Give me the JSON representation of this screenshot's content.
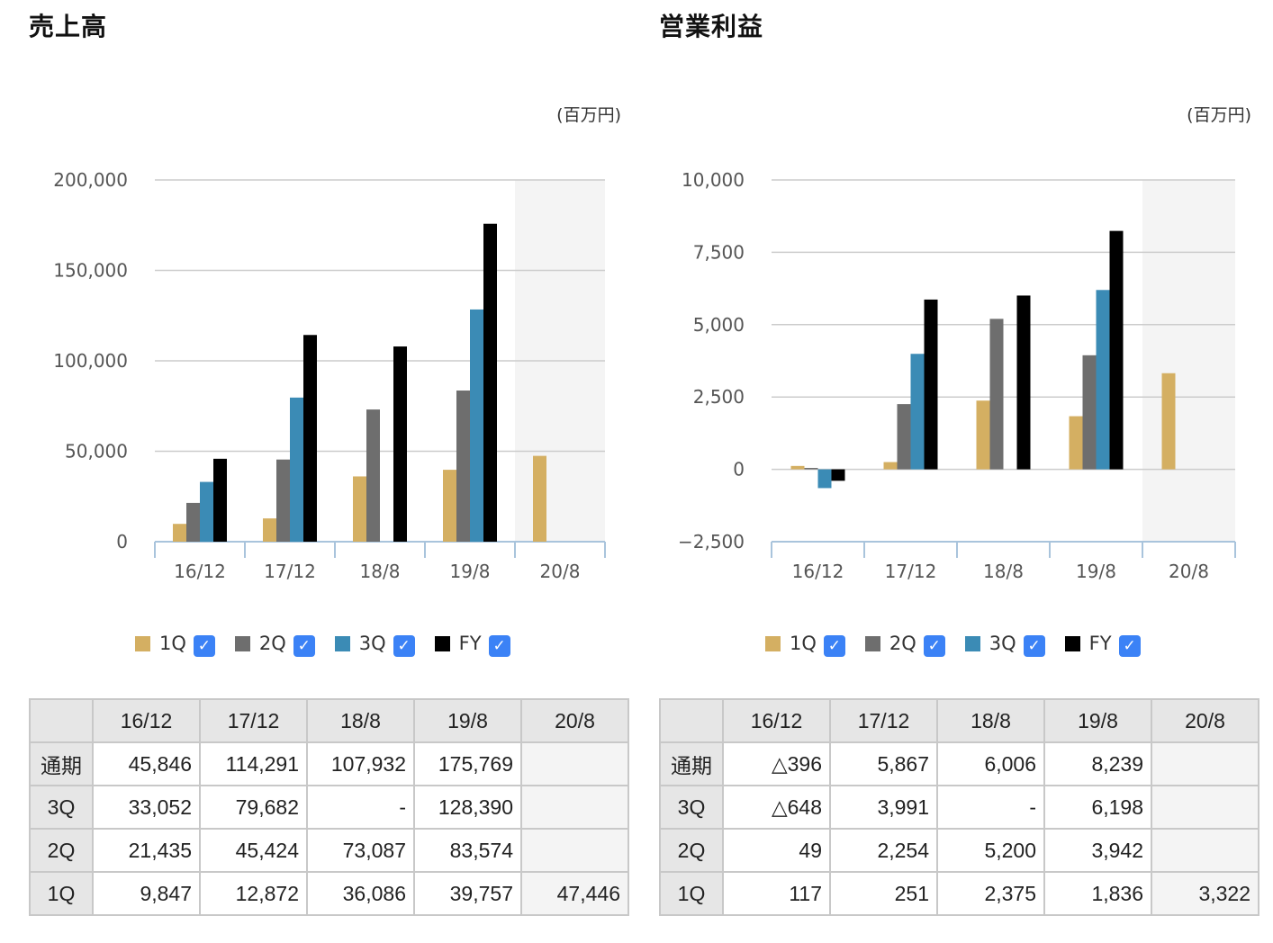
{
  "colors": {
    "q1": "#d4af62",
    "q2": "#6e6e6e",
    "q3": "#3b8bb5",
    "fy": "#000000",
    "check": "#3b82f6",
    "forecast_bg": "#f4f4f4"
  },
  "legend_items": [
    {
      "key": "q1",
      "label": "1Q",
      "checked": true
    },
    {
      "key": "q2",
      "label": "2Q",
      "checked": true
    },
    {
      "key": "q3",
      "label": "3Q",
      "checked": true
    },
    {
      "key": "fy",
      "label": "FY",
      "checked": true
    }
  ],
  "check_icon": "check-icon",
  "panels": [
    {
      "title": "売上高",
      "unit": "(百万円)",
      "table": {
        "headers": [
          "",
          "16/12",
          "17/12",
          "18/8",
          "19/8",
          "20/8"
        ],
        "rows": [
          {
            "label": "通期",
            "cells": [
              "45,846",
              "114,291",
              "107,932",
              "175,769",
              ""
            ]
          },
          {
            "label": "3Q",
            "cells": [
              "33,052",
              "79,682",
              "-",
              "128,390",
              ""
            ]
          },
          {
            "label": "2Q",
            "cells": [
              "21,435",
              "45,424",
              "73,087",
              "83,574",
              ""
            ]
          },
          {
            "label": "1Q",
            "cells": [
              "9,847",
              "12,872",
              "36,086",
              "39,757",
              "47,446"
            ]
          }
        ]
      }
    },
    {
      "title": "営業利益",
      "unit": "(百万円)",
      "table": {
        "headers": [
          "",
          "16/12",
          "17/12",
          "18/8",
          "19/8",
          "20/8"
        ],
        "rows": [
          {
            "label": "通期",
            "cells": [
              "△396",
              "5,867",
              "6,006",
              "8,239",
              ""
            ]
          },
          {
            "label": "3Q",
            "cells": [
              "△648",
              "3,991",
              "-",
              "6,198",
              ""
            ]
          },
          {
            "label": "2Q",
            "cells": [
              "49",
              "2,254",
              "5,200",
              "3,942",
              ""
            ]
          },
          {
            "label": "1Q",
            "cells": [
              "117",
              "251",
              "2,375",
              "1,836",
              "3,322"
            ]
          }
        ]
      }
    }
  ],
  "chart_data": [
    {
      "type": "bar",
      "title": "売上高",
      "unit": "(百万円)",
      "categories": [
        "16/12",
        "17/12",
        "18/8",
        "19/8",
        "20/8"
      ],
      "ylim": [
        0,
        200000
      ],
      "yticks": [
        0,
        50000,
        100000,
        150000,
        200000
      ],
      "ytick_labels": [
        "0",
        "50,000",
        "100,000",
        "150,000",
        "200,000"
      ],
      "forecast_category": "20/8",
      "grid": true,
      "legend": "bottom",
      "series": [
        {
          "name": "1Q",
          "key": "q1",
          "values": [
            9847,
            12872,
            36086,
            39757,
            47446
          ]
        },
        {
          "name": "2Q",
          "key": "q2",
          "values": [
            21435,
            45424,
            73087,
            83574,
            null
          ]
        },
        {
          "name": "3Q",
          "key": "q3",
          "values": [
            33052,
            79682,
            null,
            128390,
            null
          ]
        },
        {
          "name": "FY",
          "key": "fy",
          "values": [
            45846,
            114291,
            107932,
            175769,
            null
          ]
        }
      ]
    },
    {
      "type": "bar",
      "title": "営業利益",
      "unit": "(百万円)",
      "categories": [
        "16/12",
        "17/12",
        "18/8",
        "19/8",
        "20/8"
      ],
      "ylim": [
        -2500,
        10000
      ],
      "yticks": [
        -2500,
        0,
        2500,
        5000,
        7500,
        10000
      ],
      "ytick_labels": [
        "−2,500",
        "0",
        "2,500",
        "5,000",
        "7,500",
        "10,000"
      ],
      "forecast_category": "20/8",
      "grid": true,
      "legend": "bottom",
      "series": [
        {
          "name": "1Q",
          "key": "q1",
          "values": [
            117,
            251,
            2375,
            1836,
            3322
          ]
        },
        {
          "name": "2Q",
          "key": "q2",
          "values": [
            49,
            2254,
            5200,
            3942,
            null
          ]
        },
        {
          "name": "3Q",
          "key": "q3",
          "values": [
            -648,
            3991,
            null,
            6198,
            null
          ]
        },
        {
          "name": "FY",
          "key": "fy",
          "values": [
            -396,
            5867,
            6006,
            8239,
            null
          ]
        }
      ]
    }
  ]
}
